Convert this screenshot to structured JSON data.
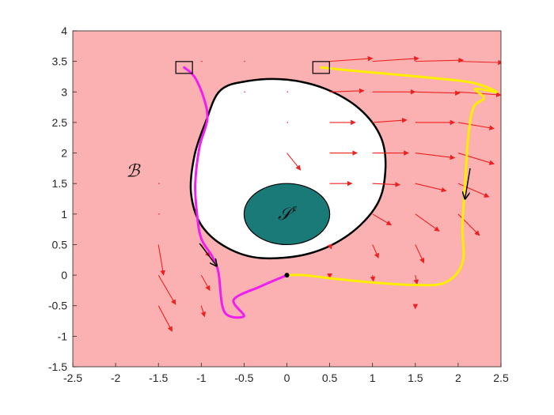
{
  "chart_data": {
    "type": "vector-field-phase-plot",
    "xlim": [
      -2.5,
      2.5
    ],
    "ylim": [
      -1.5,
      4
    ],
    "x_ticks": [
      -2.5,
      -2,
      -1.5,
      -1,
      -0.5,
      0,
      0.5,
      1,
      1.5,
      2,
      2.5
    ],
    "y_ticks": [
      -1.5,
      -1,
      -0.5,
      0,
      0.5,
      1,
      1.5,
      2,
      2.5,
      3,
      3.5,
      4
    ],
    "x_tick_labels": [
      "-2.5",
      "-2",
      "-1.5",
      "-1",
      "-0.5",
      "0",
      "0.5",
      "1",
      "1.5",
      "2",
      "2.5"
    ],
    "y_tick_labels": [
      "-1.5",
      "-1",
      "-0.5",
      "0",
      "0.5",
      "1",
      "1.5",
      "2",
      "2.5",
      "3",
      "3.5",
      "4"
    ],
    "grid": false,
    "colors": {
      "background_region": "#fbb1b1",
      "safe_set_fill": "#ffffff",
      "unsafe_set_fill": "#1a7a78",
      "vector_field": "#f02020",
      "trajectory_magenta": "#f01ef0",
      "trajectory_yellow": "#ffee00",
      "arrow_black": "#000000"
    },
    "labels": {
      "region_B": "ℬ",
      "unsafe_S": "𝒮",
      "unsafe_S_superscript": "c"
    },
    "label_positions": {
      "region_B": [
        -1.8,
        1.7
      ],
      "unsafe_S": [
        0,
        1
      ]
    },
    "unsafe_set_ellipse": {
      "cx": 0,
      "cy": 1,
      "rx": 0.5,
      "ry": 0.5
    },
    "safe_set_boundary": [
      [
        -0.78,
        3.02
      ],
      [
        -0.45,
        3.18
      ],
      [
        0.0,
        3.2
      ],
      [
        0.45,
        3.05
      ],
      [
        0.85,
        2.72
      ],
      [
        1.1,
        2.25
      ],
      [
        1.15,
        1.7
      ],
      [
        1.05,
        1.15
      ],
      [
        0.72,
        0.66
      ],
      [
        0.25,
        0.35
      ],
      [
        -0.3,
        0.28
      ],
      [
        -0.7,
        0.45
      ],
      [
        -1.0,
        0.82
      ],
      [
        -1.12,
        1.35
      ],
      [
        -1.08,
        1.95
      ],
      [
        -0.95,
        2.5
      ]
    ],
    "start_markers": [
      [
        -1.2,
        3.4
      ],
      [
        0.4,
        3.4
      ]
    ],
    "origin_point": [
      0,
      0
    ],
    "trajectories": [
      {
        "color": "magenta",
        "points": [
          [
            -1.2,
            3.4
          ],
          [
            -1.08,
            3.25
          ],
          [
            -0.97,
            2.9
          ],
          [
            -0.93,
            2.55
          ],
          [
            -1.02,
            2.1
          ],
          [
            -1.07,
            1.5
          ],
          [
            -1.05,
            1.0
          ],
          [
            -1.0,
            0.6
          ],
          [
            -0.87,
            0.3
          ],
          [
            -0.8,
            0.05
          ],
          [
            -0.73,
            -0.6
          ],
          [
            -0.5,
            -0.67
          ],
          [
            -0.62,
            -0.4
          ],
          [
            -0.3,
            -0.18
          ],
          [
            0.0,
            0.0
          ]
        ],
        "arrows": [
          {
            "from": [
              -1.02,
              0.52
            ],
            "to": [
              -0.82,
              0.15
            ]
          }
        ]
      },
      {
        "color": "yellow",
        "points": [
          [
            0.4,
            3.4
          ],
          [
            0.75,
            3.35
          ],
          [
            1.3,
            3.28
          ],
          [
            1.9,
            3.2
          ],
          [
            2.2,
            3.14
          ],
          [
            2.45,
            3.0
          ],
          [
            2.2,
            3.05
          ],
          [
            2.3,
            2.9
          ],
          [
            2.18,
            2.75
          ],
          [
            2.12,
            2.3
          ],
          [
            2.08,
            1.5
          ],
          [
            2.05,
            0.8
          ],
          [
            2.05,
            0.2
          ],
          [
            1.85,
            -0.12
          ],
          [
            1.5,
            -0.16
          ],
          [
            1.0,
            -0.12
          ],
          [
            0.5,
            -0.05
          ],
          [
            0.2,
            0.0
          ],
          [
            0.0,
            0.0
          ]
        ],
        "arrows": [
          {
            "from": [
              2.14,
              1.75
            ],
            "to": [
              2.08,
              1.25
            ]
          }
        ]
      }
    ],
    "vector_field": {
      "grid_x": [
        -1.5,
        -1.0,
        -0.5,
        0.0,
        0.5,
        1.0,
        1.5,
        2.0
      ],
      "grid_y": [
        -0.5,
        0.0,
        0.5,
        1.0,
        1.5,
        2.0,
        2.5,
        3.0,
        3.5
      ],
      "vectors": [
        [
          -1.5,
          -0.5,
          0.16,
          -0.42
        ],
        [
          -1.0,
          -0.5,
          0.04,
          -0.18
        ],
        [
          1.5,
          -0.5,
          0.0,
          -0.05
        ],
        [
          -1.5,
          0.0,
          0.2,
          -0.48
        ],
        [
          -1.0,
          0.0,
          0.1,
          -0.25
        ],
        [
          0.5,
          0.0,
          0.0,
          -0.05
        ],
        [
          1.0,
          0.0,
          0.01,
          -0.1
        ],
        [
          1.5,
          0.0,
          0.02,
          -0.15
        ],
        [
          -1.5,
          0.5,
          0.06,
          -0.5
        ],
        [
          -1.0,
          0.5,
          0.1,
          -0.2
        ],
        [
          0.5,
          0.5,
          0.02,
          -0.07
        ],
        [
          1.0,
          0.5,
          0.07,
          -0.22
        ],
        [
          1.5,
          0.5,
          0.1,
          -0.3
        ],
        [
          -1.5,
          1.0,
          0.01,
          -0.02
        ],
        [
          1.0,
          1.0,
          0.22,
          -0.18
        ],
        [
          1.5,
          1.0,
          0.28,
          -0.28
        ],
        [
          2.0,
          1.0,
          0.25,
          -0.35
        ],
        [
          -1.5,
          1.5,
          0.0,
          0.01
        ],
        [
          0.5,
          1.5,
          0.26,
          0.0
        ],
        [
          1.0,
          1.5,
          0.32,
          -0.02
        ],
        [
          1.5,
          1.5,
          0.36,
          -0.12
        ],
        [
          2.0,
          1.5,
          0.36,
          -0.22
        ],
        [
          0.0,
          2.0,
          0.16,
          -0.28
        ],
        [
          0.5,
          2.0,
          0.32,
          0.0
        ],
        [
          1.0,
          2.0,
          0.42,
          0.0
        ],
        [
          1.5,
          2.0,
          0.46,
          -0.08
        ],
        [
          2.0,
          2.0,
          0.42,
          -0.18
        ],
        [
          0.0,
          2.5,
          0.02,
          -0.02
        ],
        [
          0.5,
          2.5,
          0.3,
          0.0
        ],
        [
          1.0,
          2.5,
          0.4,
          0.04
        ],
        [
          1.5,
          2.5,
          0.46,
          0.0
        ],
        [
          2.0,
          2.5,
          0.42,
          -0.1
        ],
        [
          -0.5,
          3.0,
          0.0,
          0.02
        ],
        [
          0.0,
          3.0,
          0.02,
          0.0
        ],
        [
          0.5,
          3.0,
          0.4,
          0.02
        ],
        [
          1.0,
          3.0,
          0.5,
          0.0
        ],
        [
          1.5,
          3.0,
          0.52,
          -0.02
        ],
        [
          2.0,
          3.0,
          0.5,
          -0.05
        ],
        [
          -1.0,
          3.5,
          0.0,
          0.01
        ],
        [
          -0.5,
          3.5,
          0.0,
          0.01
        ],
        [
          0.5,
          3.5,
          0.5,
          0.05
        ],
        [
          1.0,
          3.5,
          0.54,
          0.05
        ],
        [
          1.5,
          3.5,
          0.56,
          0.02
        ],
        [
          2.0,
          3.5,
          0.52,
          -0.02
        ]
      ]
    }
  }
}
